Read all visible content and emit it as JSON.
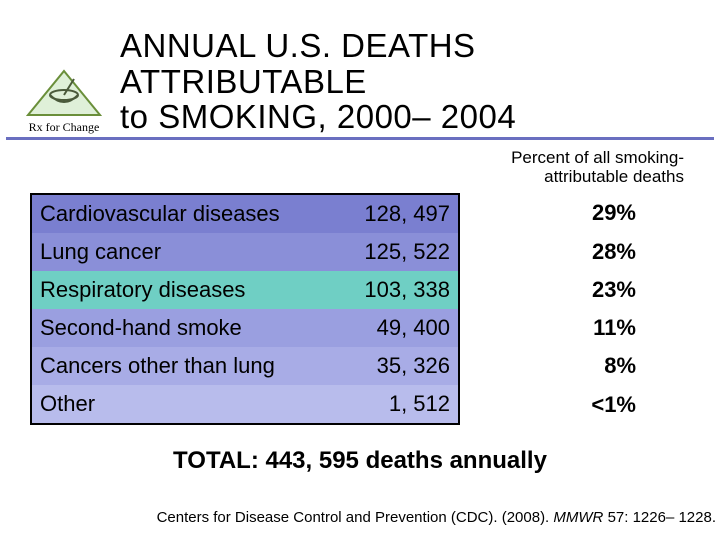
{
  "title_line1": "ANNUAL U.S. DEATHS ATTRIBUTABLE",
  "title_line2": "to SMOKING, 2000– 2004",
  "subhead_line1": "Percent of all smoking-",
  "subhead_line2": "attributable deaths",
  "row_colors": [
    "#7a7fd0",
    "#8a8fd8",
    "#6fcfc4",
    "#9a9fe0",
    "#a8ace6",
    "#b8bcec"
  ],
  "rows": [
    {
      "cause": "Cardiovascular diseases",
      "value": "128, 497",
      "pct": "29%"
    },
    {
      "cause": "Lung cancer",
      "value": "125, 522",
      "pct": "28%"
    },
    {
      "cause": "Respiratory diseases",
      "value": "103, 338",
      "pct": "23%"
    },
    {
      "cause": "Second-hand smoke",
      "value": "49, 400",
      "pct": "11%"
    },
    {
      "cause": "Cancers other than lung",
      "value": "35, 326",
      "pct": "8%"
    },
    {
      "cause": "Other",
      "value": "1, 512",
      "pct": "<1%"
    }
  ],
  "total": "TOTAL: 443, 595 deaths annually",
  "citation_plain": "Centers for Disease Control and Prevention (CDC). (2008). ",
  "citation_ital": "MMWR ",
  "citation_tail": "57: 1226– 1228.",
  "logo_text": "Rx for Change",
  "logo_colors": {
    "triangle_fill": "#dff0d8",
    "triangle_stroke": "#6a8f3a",
    "mortar": "#4a5a3a"
  }
}
